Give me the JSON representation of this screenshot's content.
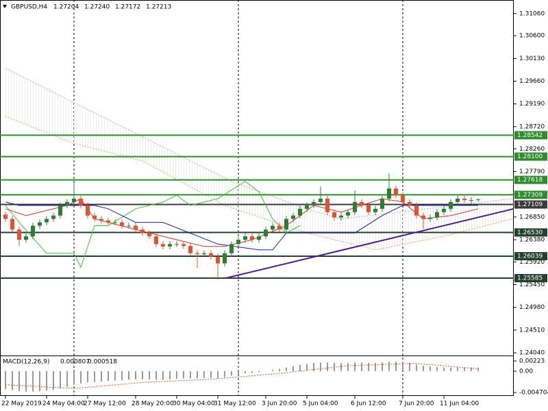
{
  "chart_data": {
    "type": "candlestick",
    "title": "GBPUSD,H4",
    "header_values": [
      1.27204,
      {
        "value": 1.2724,
        "label": "1.27240"
      },
      1.27172,
      1.27213
    ],
    "bull_color": "#2e7d32",
    "bear_color": "#e5502e",
    "xlim": [
      -0.8,
      74.2
    ],
    "ylim": [
      1.2397,
      1.3134
    ],
    "yticks": [
      {
        "value": 1.3106,
        "label": "1.31060"
      },
      {
        "value": 1.306,
        "label": "1.30600"
      },
      {
        "value": 1.3013,
        "label": "1.30130"
      },
      {
        "value": 1.2966,
        "label": "1.29660"
      },
      {
        "value": 1.2919,
        "label": "1.29190"
      },
      {
        "value": 1.2872,
        "label": "1.28720"
      },
      {
        "value": 1.2826,
        "label": "1.28260"
      },
      {
        "value": 1.2779,
        "label": "1.27790"
      },
      {
        "value": 1.2732,
        "label": "1.27320"
      },
      {
        "value": 1.2685,
        "label": "1.26850"
      },
      {
        "value": 1.2638,
        "label": "1.26380"
      },
      {
        "value": 1.2592,
        "label": "1.25920"
      },
      {
        "value": 1.2545,
        "label": "1.25450"
      },
      {
        "value": 1.2498,
        "label": "1.24980"
      },
      {
        "value": 1.2451,
        "label": "1.24510"
      },
      {
        "value": 1.2404,
        "label": "1.24040"
      }
    ],
    "xticks": [
      {
        "value": 0,
        "label": "22 May 2019"
      },
      {
        "value": 6,
        "label": "24 May 04:00"
      },
      {
        "value": 12,
        "label": "27 May 12:00"
      },
      {
        "value": 19,
        "label": "28 May 20:00"
      },
      {
        "value": 25,
        "label": "30 May 04:00"
      },
      {
        "value": 31,
        "label": "31 May 12:00"
      },
      {
        "value": 38,
        "label": "3 Jun 20:00"
      },
      {
        "value": 44,
        "label": "5 Jun 04:00"
      },
      {
        "value": 51,
        "label": "6 Jun 12:00"
      },
      {
        "value": 58,
        "label": "7 Jun 20:00"
      },
      {
        "value": 64,
        "label": "11 Jun 04:00"
      }
    ],
    "separators": [
      10,
      34,
      58
    ],
    "ohlc": [
      [
        1.269,
        1.2696,
        1.2675,
        1.2681
      ],
      [
        1.2681,
        1.2687,
        1.2653,
        1.2659
      ],
      [
        1.2659,
        1.2665,
        1.2625,
        1.2638
      ],
      [
        1.2638,
        1.2651,
        1.2632,
        1.2645
      ],
      [
        1.2645,
        1.2673,
        1.2639,
        1.2667
      ],
      [
        1.2667,
        1.268,
        1.2661,
        1.2674
      ],
      [
        1.2674,
        1.2687,
        1.2668,
        1.2681
      ],
      [
        1.2681,
        1.2694,
        1.2675,
        1.2688
      ],
      [
        1.2688,
        1.2715,
        1.2682,
        1.2709
      ],
      [
        1.2709,
        1.2722,
        1.2703,
        1.2716
      ],
      [
        1.2716,
        1.2755,
        1.271,
        1.2723
      ],
      [
        1.2723,
        1.2729,
        1.2703,
        1.2709
      ],
      [
        1.2709,
        1.2715,
        1.2682,
        1.2688
      ],
      [
        1.2688,
        1.2694,
        1.2675,
        1.2681
      ],
      [
        1.2681,
        1.2687,
        1.2672,
        1.2678
      ],
      [
        1.2678,
        1.2684,
        1.2668,
        1.2674
      ],
      [
        1.2674,
        1.268,
        1.2668,
        1.2674
      ],
      [
        1.2674,
        1.268,
        1.2661,
        1.2667
      ],
      [
        1.2667,
        1.2673,
        1.2661,
        1.2667
      ],
      [
        1.2667,
        1.2673,
        1.2653,
        1.2659
      ],
      [
        1.2659,
        1.2665,
        1.2646,
        1.2652
      ],
      [
        1.2652,
        1.2658,
        1.2639,
        1.2645
      ],
      [
        1.2645,
        1.2651,
        1.2623,
        1.2629
      ],
      [
        1.2629,
        1.2635,
        1.2618,
        1.2624
      ],
      [
        1.2624,
        1.2635,
        1.2618,
        1.2629
      ],
      [
        1.2629,
        1.2635,
        1.2623,
        1.2629
      ],
      [
        1.2629,
        1.2635,
        1.2619,
        1.2625
      ],
      [
        1.2625,
        1.2631,
        1.2604,
        1.261
      ],
      [
        1.261,
        1.2616,
        1.258,
        1.2608
      ],
      [
        1.2608,
        1.2616,
        1.2602,
        1.261
      ],
      [
        1.261,
        1.2616,
        1.2597,
        1.2603
      ],
      [
        1.2603,
        1.2609,
        1.2555,
        1.2589
      ],
      [
        1.2589,
        1.2616,
        1.2583,
        1.261
      ],
      [
        1.261,
        1.2635,
        1.2604,
        1.2629
      ],
      [
        1.2629,
        1.2644,
        1.2623,
        1.2638
      ],
      [
        1.2638,
        1.2651,
        1.2632,
        1.2645
      ],
      [
        1.2645,
        1.2651,
        1.2632,
        1.2638
      ],
      [
        1.2638,
        1.2651,
        1.2632,
        1.2645
      ],
      [
        1.2645,
        1.2665,
        1.2639,
        1.2659
      ],
      [
        1.2659,
        1.2673,
        1.2653,
        1.2667
      ],
      [
        1.2667,
        1.2673,
        1.2653,
        1.2659
      ],
      [
        1.2659,
        1.2687,
        1.2653,
        1.2681
      ],
      [
        1.2681,
        1.2694,
        1.2675,
        1.2688
      ],
      [
        1.2688,
        1.2708,
        1.2682,
        1.2702
      ],
      [
        1.2702,
        1.2715,
        1.2696,
        1.2709
      ],
      [
        1.2709,
        1.2722,
        1.2703,
        1.2716
      ],
      [
        1.2716,
        1.2748,
        1.271,
        1.2723
      ],
      [
        1.2723,
        1.2729,
        1.2689,
        1.2695
      ],
      [
        1.2695,
        1.2701,
        1.2678,
        1.2684
      ],
      [
        1.2684,
        1.2694,
        1.2678,
        1.2688
      ],
      [
        1.2688,
        1.2701,
        1.2682,
        1.2695
      ],
      [
        1.2695,
        1.274,
        1.2689,
        1.2716
      ],
      [
        1.2716,
        1.2722,
        1.2703,
        1.2709
      ],
      [
        1.2709,
        1.2715,
        1.2689,
        1.2695
      ],
      [
        1.2695,
        1.2708,
        1.2689,
        1.2702
      ],
      [
        1.2702,
        1.2729,
        1.2696,
        1.2723
      ],
      [
        1.2723,
        1.2775,
        1.2717,
        1.2744
      ],
      [
        1.2744,
        1.275,
        1.2724,
        1.273
      ],
      [
        1.273,
        1.2736,
        1.271,
        1.2716
      ],
      [
        1.2716,
        1.2722,
        1.2703,
        1.2709
      ],
      [
        1.2709,
        1.2715,
        1.2682,
        1.2688
      ],
      [
        1.2688,
        1.2694,
        1.266,
        1.2681
      ],
      [
        1.2681,
        1.269,
        1.2675,
        1.2684
      ],
      [
        1.2684,
        1.2701,
        1.2678,
        1.2695
      ],
      [
        1.2695,
        1.2708,
        1.2689,
        1.2702
      ],
      [
        1.2702,
        1.2722,
        1.2696,
        1.2716
      ],
      [
        1.2716,
        1.2729,
        1.271,
        1.2723
      ],
      [
        1.2723,
        1.2729,
        1.2714,
        1.272
      ],
      [
        1.272,
        1.2726,
        1.2713,
        1.272
      ],
      [
        1.27204,
        1.2724,
        1.27172,
        1.27213
      ]
    ],
    "ichimoku": {
      "tenkan": {
        "color": "#d32f2f",
        "x": [
          0,
          3,
          9,
          11,
          13,
          19,
          23,
          29,
          32,
          36,
          41,
          45,
          49,
          55,
          58,
          61,
          65,
          69
        ],
        "values": [
          1.2702,
          1.2688,
          1.2709,
          1.2723,
          1.2681,
          1.2659,
          1.2645,
          1.2624,
          1.2624,
          1.2638,
          1.2667,
          1.2709,
          1.2695,
          1.2723,
          1.2716,
          1.2681,
          1.2688,
          1.2702
        ]
      },
      "kijun": {
        "color": "#1a1aa6",
        "x": [
          0,
          2,
          13,
          15,
          19,
          23,
          31,
          37,
          39,
          41,
          51,
          55,
          58,
          61,
          69
        ],
        "values": [
          1.2716,
          1.2709,
          1.2709,
          1.2702,
          1.2674,
          1.2674,
          1.2629,
          1.2617,
          1.2617,
          1.2652,
          1.2652,
          1.2688,
          1.2709,
          1.2709,
          1.2709
        ]
      },
      "chikou": {
        "color": "#33cc33",
        "x": [
          0,
          2,
          6,
          10,
          11,
          13,
          15,
          19,
          23,
          25,
          27,
          31,
          35,
          37,
          39,
          41,
          43
        ],
        "values": [
          1.2709,
          1.2674,
          1.261,
          1.261,
          1.2581,
          1.2667,
          1.2667,
          1.2702,
          1.2716,
          1.273,
          1.2709,
          1.2723,
          1.2759,
          1.2737,
          1.2681,
          1.2652,
          1.2667
        ]
      },
      "span_a": {
        "color": "#b0b0b0",
        "x": [
          0,
          10,
          20,
          33,
          44,
          49,
          74
        ],
        "values": [
          1.2993,
          1.2922,
          1.2851,
          1.2759,
          1.2702,
          1.2681,
          1.2723
        ]
      },
      "span_b": {
        "color": "#e0a070",
        "x": [
          0,
          10,
          20,
          32,
          44,
          54,
          64,
          74
        ],
        "values": [
          1.2893,
          1.2837,
          1.2801,
          1.2709,
          1.2652,
          1.2617,
          1.2645,
          1.2681
        ]
      }
    },
    "levels": [
      1.28542,
      {
        "value": 1.281,
        "label": "1.28100"
      },
      1.27618,
      1.27309,
      1.27109,
      {
        "value": 1.2653,
        "label": "1.26530"
      },
      1.26039,
      1.25585
    ],
    "level_colors": [
      "#2e8b2e",
      "#2e8b2e",
      "#2e8b2e",
      "#2e8b2e",
      "#3a3a3a",
      "#24402e",
      "#24402e",
      "#24402e"
    ],
    "trendline": {
      "color": "#4b1c8c",
      "x": [
        32,
        74.2
      ],
      "values": [
        1.2558,
        1.2702
      ]
    },
    "macd": {
      "title": "MACD(12,26,9)",
      "printed_values": [
        0.000807,
        0.000518
      ],
      "ylim": [
        -0.00546,
        0.00329
      ],
      "yticks": [
        0.00223,
        {
          "value": 0,
          "label": "0.00"
        },
        -0.004704
      ],
      "histogram_color": "#333333",
      "signal_color": "#e5502e",
      "histogram": [
        -0.004,
        -0.0042,
        -0.0044,
        -0.0045,
        -0.0045,
        -0.0044,
        -0.0043,
        -0.0041,
        -0.0038,
        -0.0035,
        -0.003,
        -0.0027,
        -0.0025,
        -0.0024,
        -0.0023,
        -0.0022,
        -0.0021,
        -0.002,
        -0.0019,
        -0.0018,
        -0.0018,
        -0.0018,
        -0.0019,
        -0.0019,
        -0.0018,
        -0.0017,
        -0.0016,
        -0.0016,
        -0.0016,
        -0.0015,
        -0.0015,
        -0.0016,
        -0.0013,
        -0.001,
        -0.0007,
        -0.0005,
        -0.0004,
        -0.0002,
        0.0,
        0.0003,
        0.0005,
        0.0008,
        0.0011,
        0.0014,
        0.0016,
        0.0018,
        0.0019,
        0.0019,
        0.0018,
        0.0018,
        0.0018,
        0.0019,
        0.0019,
        0.0018,
        0.0018,
        0.0019,
        0.0021,
        0.0021,
        0.002,
        0.0018,
        0.0015,
        0.0012,
        0.001,
        0.0009,
        0.0008,
        0.0008,
        0.0008,
        0.0008,
        0.0008,
        0.000807
      ],
      "signal": {
        "x": [
          0,
          10,
          20,
          30,
          40,
          50,
          60,
          69
        ],
        "values": [
          -0.003,
          -0.0038,
          -0.0025,
          -0.0018,
          -0.0005,
          0.0012,
          0.0017,
          0.000518
        ]
      }
    }
  }
}
